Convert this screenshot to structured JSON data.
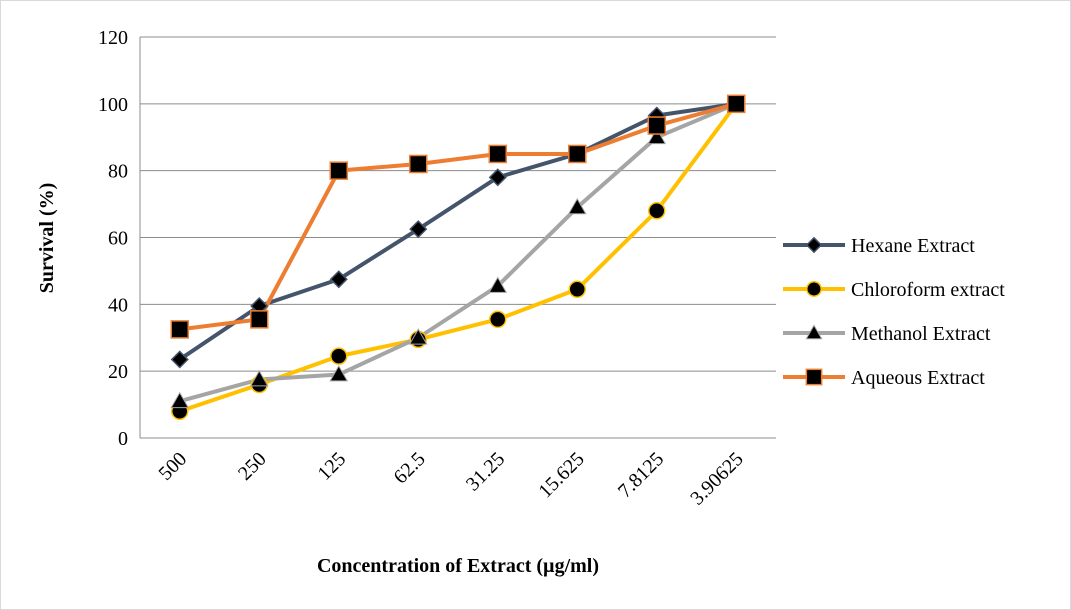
{
  "chart_data": {
    "type": "line",
    "title": "",
    "xlabel": "Concentration of Extract (µg/ml)",
    "ylabel": "Survival (%)",
    "categories": [
      "500",
      "250",
      "125",
      "62.5",
      "31.25",
      "15.625",
      "7.8125",
      "3.90625"
    ],
    "ylim": [
      0,
      120
    ],
    "yticks": [
      0,
      20,
      40,
      60,
      80,
      100,
      120
    ],
    "grid": true,
    "legend_position": "right",
    "series": [
      {
        "name": "Hexane Extract",
        "color": "#44546a",
        "marker": "diamond",
        "values": [
          23.5,
          39.5,
          47.5,
          62.5,
          78,
          85,
          96.5,
          100
        ]
      },
      {
        "name": "Chloroform extract",
        "color": "#ffc000",
        "marker": "circle",
        "values": [
          8,
          16,
          24.5,
          29.5,
          35.5,
          44.5,
          68,
          100
        ]
      },
      {
        "name": "Methanol Extract",
        "color": "#a5a5a5",
        "marker": "triangle",
        "values": [
          11,
          17.5,
          19,
          30,
          45.5,
          69,
          90,
          100
        ]
      },
      {
        "name": "Aqueous Extract",
        "color": "#ed7d31",
        "marker": "square",
        "values": [
          32.5,
          35.5,
          80,
          82,
          85,
          85,
          93.5,
          100
        ]
      }
    ]
  }
}
